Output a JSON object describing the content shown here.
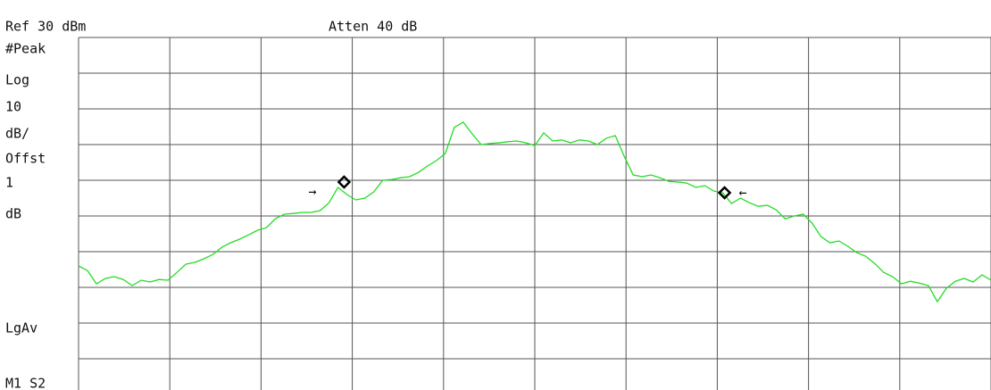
{
  "chart_data": {
    "type": "line",
    "annotations": {
      "ref": "Ref 30 dBm",
      "atten": "Atten 40 dB",
      "left": [
        "#Peak",
        "Log",
        "10",
        "dB/",
        "Offst",
        "1",
        "dB",
        "LgAv",
        "M1  S2"
      ]
    },
    "xlim": [
      0,
      10
    ],
    "ylim": [
      -70,
      30
    ],
    "divisions": 10,
    "grid": true,
    "color": "#22dd22",
    "values": [
      -34,
      -35.3,
      -39,
      -37.5,
      -37,
      -37.8,
      -39.5,
      -38,
      -38.5,
      -37.8,
      -38,
      -35.8,
      -33.5,
      -33,
      -32,
      -30.8,
      -28.8,
      -27.5,
      -26.5,
      -25.3,
      -24,
      -23.3,
      -20.8,
      -19.5,
      -19.3,
      -19,
      -19,
      -18.5,
      -16.3,
      -12,
      -14,
      -15.5,
      -15,
      -13.3,
      -10,
      -9.8,
      -9.3,
      -9,
      -7.8,
      -6,
      -4.5,
      -2.5,
      4.8,
      6.3,
      3,
      0,
      0.3,
      0.5,
      0.8,
      1,
      0.5,
      -0.3,
      3.3,
      1,
      1.3,
      0.5,
      1.3,
      1,
      0,
      1.8,
      2.5,
      -3.3,
      -8.5,
      -9,
      -8.5,
      -9.3,
      -10.3,
      -10.5,
      -10.8,
      -12,
      -11.5,
      -13,
      -13.5,
      -16.5,
      -15,
      -16.3,
      -17.3,
      -17,
      -18.3,
      -20.8,
      -20,
      -19.5,
      -22,
      -25.8,
      -27.5,
      -27,
      -28.5,
      -30.3,
      -31.3,
      -33.3,
      -35.8,
      -37,
      -39,
      -38.3,
      -38.8,
      -39.5,
      -44,
      -40.3,
      -38.3,
      -37.5,
      -38.5,
      -36.5,
      -38
    ],
    "markers": [
      {
        "x": 2.91,
        "y": -10.5
      },
      {
        "x": 7.08,
        "y": -13.5
      }
    ]
  }
}
